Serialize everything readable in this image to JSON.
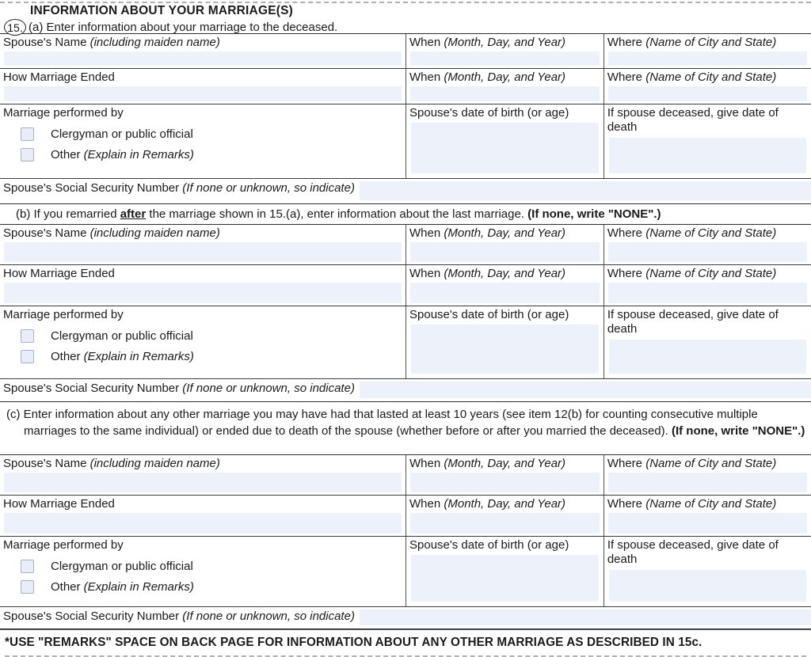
{
  "form": {
    "section_title": "INFORMATION ABOUT YOUR MARRIAGE(S)",
    "item_number": "15.",
    "footer_note": "*USE \"REMARKS\" SPACE ON BACK PAGE FOR INFORMATION ABOUT ANY OTHER MARRIAGE AS DESCRIBED IN 15c."
  },
  "sections": {
    "a": {
      "intro": "(a) Enter information about your marriage to the deceased."
    },
    "b": {
      "intro_part1": "(b) If you remarried ",
      "intro_emphasis": "after",
      "intro_part2": " the marriage shown in 15.(a), enter information about the last marriage. ",
      "intro_bold": "(If none, write \"NONE\".)"
    },
    "c": {
      "intro_part1": "(c) Enter information about any other marriage you may have had that lasted at least 10 years (see item 12(b) for counting consecutive multiple marriages to the same individual) or ended due to death of the spouse (whether before or after you married the deceased). ",
      "intro_bold": "(If none, write \"NONE\".)"
    }
  },
  "labels": {
    "spouse_name": "Spouse's Name",
    "spouse_name_note": " (including maiden name)",
    "when": "When",
    "when_note": " (Month, Day, and Year)",
    "where": "Where",
    "where_note": " (Name of City and State)",
    "how_ended": "How Marriage Ended",
    "performed_by": "Marriage performed by",
    "clergyman": "Clergyman or public official",
    "other": "Other",
    "other_note": " (Explain in Remarks)",
    "dob": "Spouse's date of birth (or age)",
    "deceased": "If spouse deceased, give date of death",
    "ssn": "Spouse's Social Security Number",
    "ssn_note": " (If none or unknown, so indicate)"
  },
  "colors": {
    "input_fill": "#edf1f9",
    "checkbox_fill": "#e9edf8",
    "checkbox_border": "#a9b0c9"
  }
}
